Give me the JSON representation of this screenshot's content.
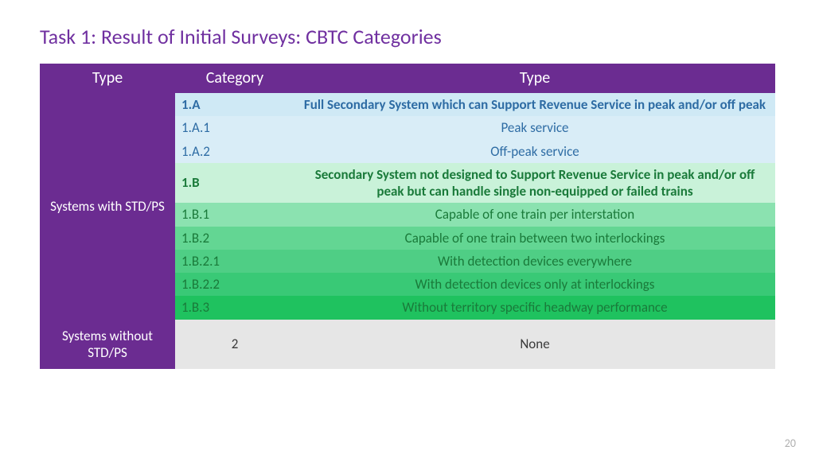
{
  "title": "Task 1: Result of Initial Surveys: CBTC Categories",
  "page_number": "20",
  "colors": {
    "purple": "#6b2c91",
    "blue_header": "#cfe9f5",
    "blue_text": "#2e6ca4",
    "blue_sub": "#d9edf7",
    "green_header": "#c9f2d9",
    "green_text": "#1a7a3a",
    "green1": "#8be2b0",
    "green2": "#63d693",
    "green3": "#4fce85",
    "green4": "#39c976",
    "green5": "#1fc25f",
    "grey": "#e6e6e6"
  },
  "headers": {
    "c1": "Type",
    "c2": "Category",
    "c3": "Type"
  },
  "group1_label": "Systems with STD/PS",
  "group2_label": "Systems without STD/PS",
  "rows": [
    {
      "cat": "1.A",
      "desc": "Full Secondary System which can Support Revenue Service in peak and/or off peak",
      "bg": "blue_header",
      "fg": "blue_text",
      "bold": true,
      "indent": 0
    },
    {
      "cat": "1.A.1",
      "desc": "Peak service",
      "bg": "blue_sub",
      "fg": "blue_text",
      "bold": false,
      "indent": 1
    },
    {
      "cat": "1.A.2",
      "desc": "Off-peak service",
      "bg": "blue_sub",
      "fg": "blue_text",
      "bold": false,
      "indent": 1
    },
    {
      "cat": "1.B",
      "desc": "Secondary System not designed to Support Revenue Service in peak and/or off peak but can handle single non-equipped or failed trains",
      "bg": "green_header",
      "fg": "green_text",
      "bold": true,
      "indent": 0
    },
    {
      "cat": "1.B.1",
      "desc": "Capable of one train per interstation",
      "bg": "green1",
      "fg": "green_text",
      "bold": false,
      "indent": 1
    },
    {
      "cat": "1.B.2",
      "desc": "Capable of one train between two interlockings",
      "bg": "green2",
      "fg": "green_text",
      "bold": false,
      "indent": 1
    },
    {
      "cat": "1.B.2.1",
      "desc": "With detection devices everywhere",
      "bg": "green3",
      "fg": "green_text",
      "bold": false,
      "indent": 2
    },
    {
      "cat": "1.B.2.2",
      "desc": "With detection devices only at interlockings",
      "bg": "green4",
      "fg": "green_text",
      "bold": false,
      "indent": 2
    },
    {
      "cat": "1.B.3",
      "desc": "Without territory specific headway performance",
      "bg": "green5",
      "fg": "green_text",
      "bold": false,
      "indent": 1
    }
  ],
  "group2_row": {
    "cat": "2",
    "desc": "None",
    "bg": "grey",
    "fg": "#3a3a3a"
  }
}
